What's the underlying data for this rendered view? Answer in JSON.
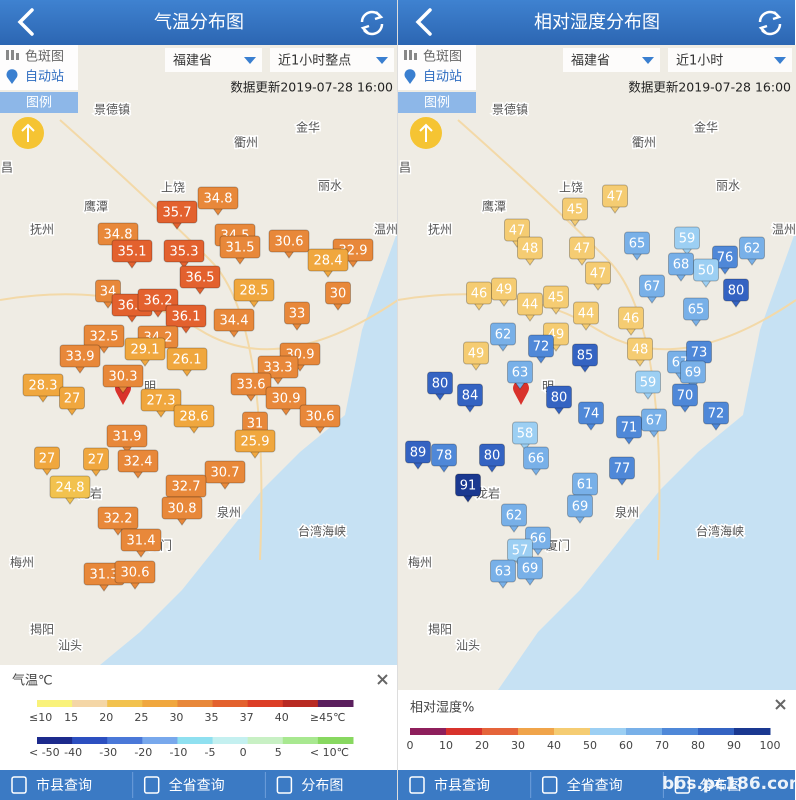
{
  "places": [
    "景德镇",
    "衢州",
    "金华",
    "上饶",
    "丽水",
    "鹰潭",
    "抚州",
    "温州",
    "龙岩",
    "泉州",
    "厦门",
    "台湾海峡",
    "梅州",
    "揭阳",
    "汕头",
    "昌",
    "明"
  ],
  "panels": [
    {
      "title": "气温分布图",
      "layer": "色斑图",
      "station_type": "自动站",
      "legend_button": "图例",
      "region": "福建省",
      "period": "近1小时整点",
      "update": "数据更新2019-07-28 16:00",
      "stations": [
        35.7,
        34.8,
        34.8,
        35.1,
        35.3,
        34.5,
        31.5,
        30.6,
        32.9,
        28.4,
        36.5,
        28.5,
        30,
        34,
        36.8,
        36.2,
        36.1,
        34.4,
        33,
        32.5,
        34.2,
        29.1,
        33.9,
        26.1,
        30.9,
        33.3,
        30.3,
        33.6,
        28.3,
        27,
        27.3,
        30.9,
        28.6,
        30.6,
        31,
        31.9,
        25.9,
        27,
        27,
        32.4,
        30.7,
        24.8,
        32.7,
        30.8,
        32.2,
        31.4,
        31.3,
        30.6
      ],
      "legend": {
        "title": "气温℃",
        "rows": [
          {
            "ticks": [
              {
                "value": 10,
                "label": "≤10"
              },
              15,
              20,
              25,
              30,
              35,
              37,
              40,
              {
                "value": 45,
                "label": "≥45℃"
              }
            ],
            "colors": [
              "#f9f27a",
              "#f4d6a6",
              "#f2c24e",
              "#f0a73e",
              "#e8883a",
              "#e3612e",
              "#dc3e26",
              "#b82a22",
              "#5b1f5e"
            ]
          },
          {
            "ticks": [
              {
                "value": -50,
                "label": "< -50"
              },
              -40,
              -30,
              -20,
              -10,
              -5,
              0,
              5,
              {
                "value": 10,
                "label": "< 10℃"
              }
            ],
            "colors": [
              "#1c2a8c",
              "#2c4fc0",
              "#4a78d8",
              "#78a8ec",
              "#8fe0f0",
              "#c4f0f0",
              "#c8f0c4",
              "#a8e890",
              "#88d860"
            ]
          }
        ]
      }
    },
    {
      "title": "相对湿度分布图",
      "layer": "色斑图",
      "station_type": "自动站",
      "legend_button": "图例",
      "region": "福建省",
      "period": "近1小时",
      "update": "数据更新2019-07-28 16:00",
      "stations": [
        45,
        47,
        47,
        48,
        47,
        65,
        59,
        62,
        68,
        76,
        50,
        80,
        47,
        67,
        46,
        49,
        44,
        45,
        44,
        46,
        65,
        62,
        49,
        72,
        85,
        49,
        48,
        67,
        73,
        69,
        80,
        84,
        63,
        59,
        80,
        70,
        74,
        72,
        67,
        71,
        58,
        89,
        78,
        80,
        66,
        77,
        91,
        61,
        69,
        62,
        66,
        57,
        63,
        69
      ],
      "legend": {
        "title": "相对湿度%",
        "rows": [
          {
            "ticks": [
              0,
              10,
              20,
              30,
              40,
              50,
              60,
              70,
              80,
              90,
              100
            ],
            "colors": [
              "#8e1f5c",
              "#d8322c",
              "#e5643a",
              "#f0a44a",
              "#f5cc72",
              "#9ccff3",
              "#78b0e8",
              "#4f88d8",
              "#3463c2",
              "#1a3890"
            ]
          }
        ]
      }
    }
  ],
  "nav": [
    "市县查询",
    "全省查询",
    "分布图"
  ],
  "watermark": "bbs.pc186.com"
}
